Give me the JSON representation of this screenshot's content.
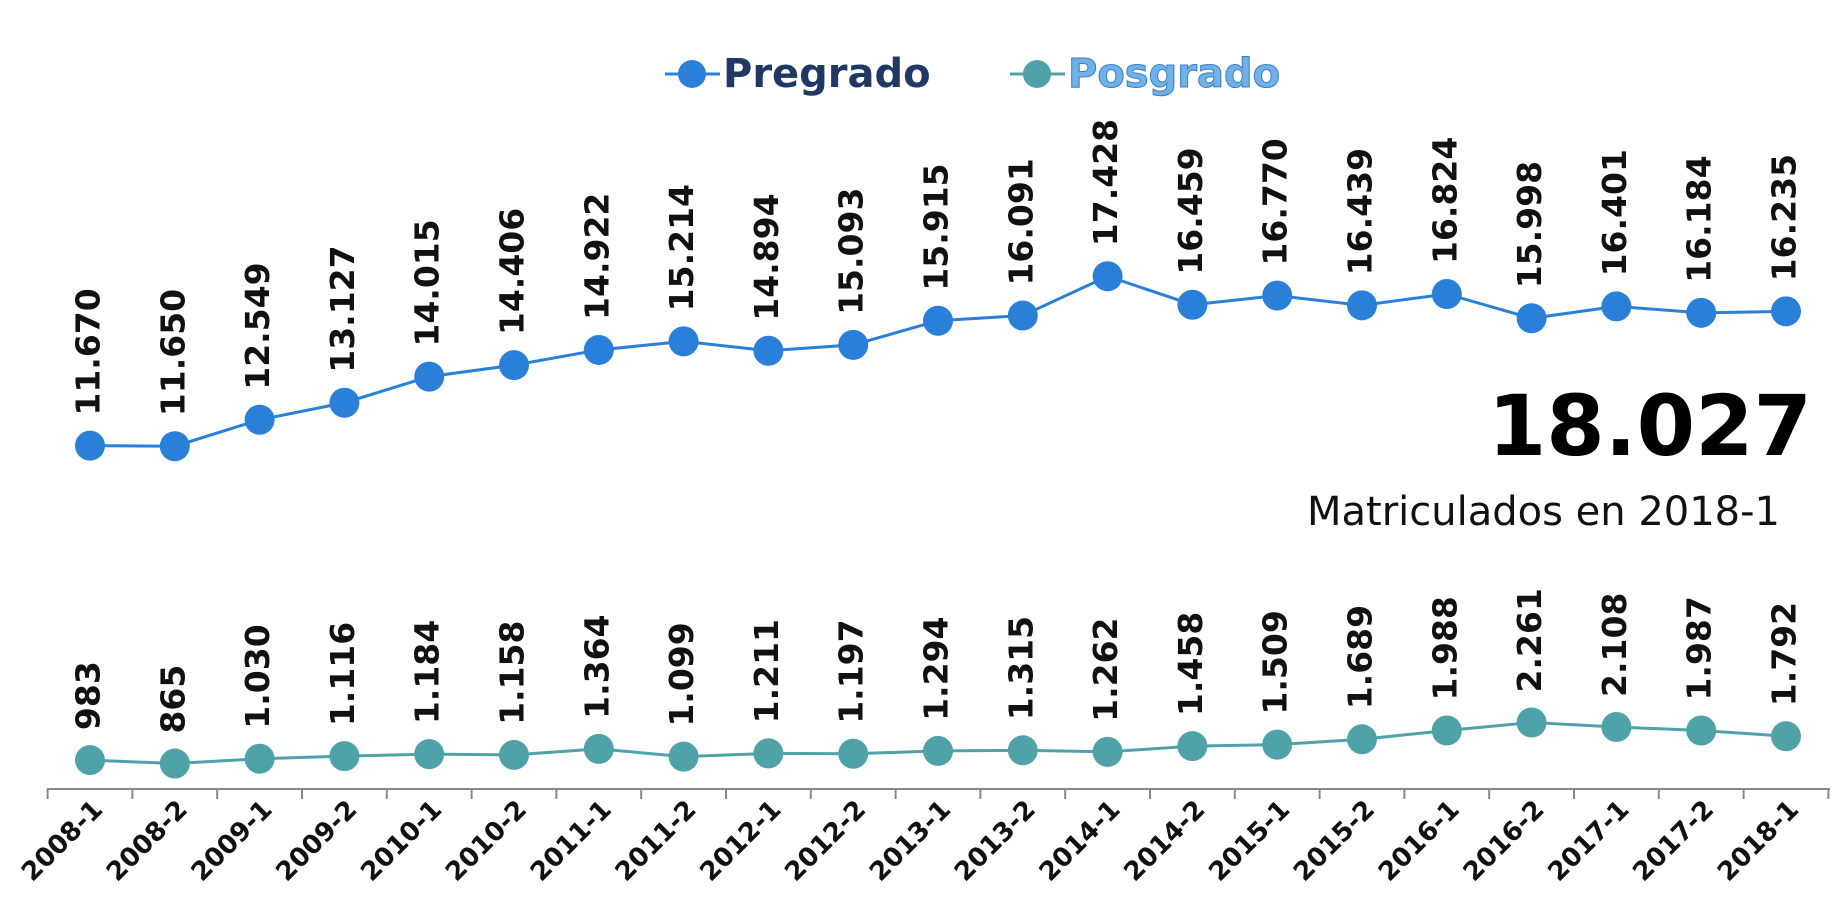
{
  "chart_data": {
    "type": "line",
    "categories": [
      "2008-1",
      "2008-2",
      "2009-1",
      "2009-2",
      "2010-1",
      "2010-2",
      "2011-1",
      "2011-2",
      "2012-1",
      "2012-2",
      "2013-1",
      "2013-2",
      "2014-1",
      "2014-2",
      "2015-1",
      "2015-2",
      "2016-1",
      "2016-2",
      "2017-1",
      "2017-2",
      "2018-1"
    ],
    "series": [
      {
        "name": "Pregrado",
        "color": "#2a7fd9",
        "values": [
          11670,
          11650,
          12549,
          13127,
          14015,
          14406,
          14922,
          15214,
          14894,
          15093,
          15915,
          16091,
          17428,
          16459,
          16770,
          16439,
          16824,
          15998,
          16401,
          16184,
          16235
        ],
        "value_labels": [
          "11.670",
          "11.650",
          "12.549",
          "13.127",
          "14.015",
          "14.406",
          "14.922",
          "15.214",
          "14.894",
          "15.093",
          "15.915",
          "16.091",
          "17.428",
          "16.459",
          "16.770",
          "16.439",
          "16.824",
          "15.998",
          "16.401",
          "16.184",
          "16.235"
        ]
      },
      {
        "name": "Posgrado",
        "color": "#4fa3a8",
        "values": [
          983,
          865,
          1030,
          1116,
          1184,
          1158,
          1364,
          1099,
          1211,
          1197,
          1294,
          1315,
          1262,
          1458,
          1509,
          1689,
          1988,
          2261,
          2108,
          1987,
          1792
        ],
        "value_labels": [
          "983",
          "865",
          "1.030",
          "1.116",
          "1.184",
          "1.158",
          "1.364",
          "1.099",
          "1.211",
          "1.197",
          "1.294",
          "1.315",
          "1.262",
          "1.458",
          "1.509",
          "1.689",
          "1.988",
          "2.261",
          "2.108",
          "1.987",
          "1.792"
        ]
      }
    ],
    "ylim": [
      0,
      26000
    ],
    "legend": "top",
    "annotations": [
      "18.027",
      "Matriculados en 2018-1"
    ]
  }
}
